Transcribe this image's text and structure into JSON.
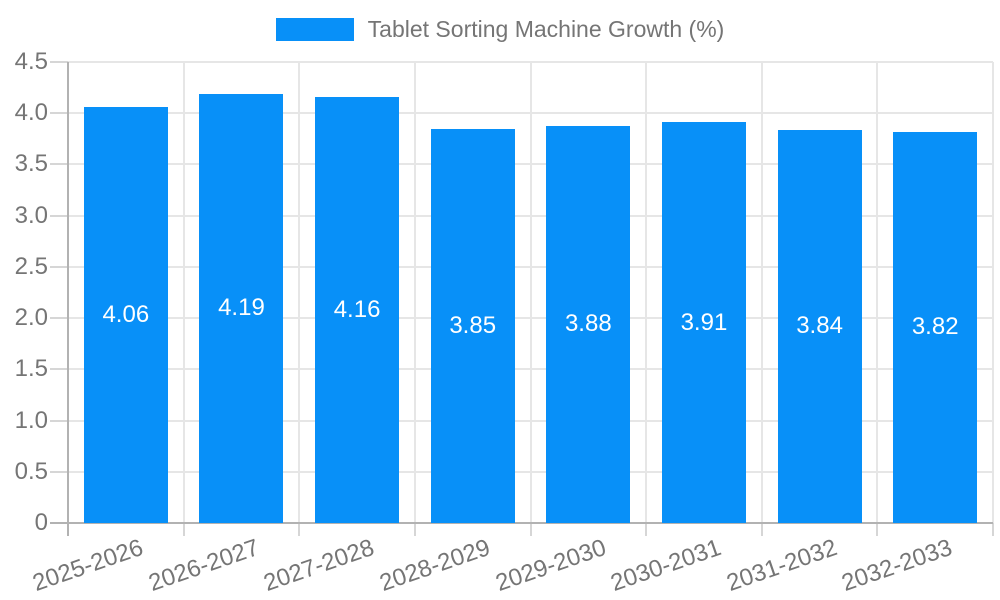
{
  "legend": {
    "label": "Tablet Sorting Machine Growth (%)"
  },
  "colors": {
    "bar": "#0890f8",
    "label_text": "#757575",
    "value_text": "#ffffff",
    "gridline": "#e6e6e6",
    "axis_line": "#b2b2b2",
    "tick_mark": "#d6d6d6"
  },
  "chart_data": {
    "type": "bar",
    "title": "Tablet Sorting Machine Growth (%)",
    "categories": [
      "2025-2026",
      "2026-2027",
      "2027-2028",
      "2028-2029",
      "2029-2030",
      "2030-2031",
      "2031-2032",
      "2032-2033"
    ],
    "values": [
      4.06,
      4.19,
      4.16,
      3.85,
      3.88,
      3.91,
      3.84,
      3.82
    ],
    "value_labels": [
      "4.06",
      "4.19",
      "4.16",
      "3.85",
      "3.88",
      "3.91",
      "3.84",
      "3.82"
    ],
    "xlabel": "",
    "ylabel": "",
    "ylim": [
      0,
      4.5
    ],
    "ytick_step": 0.5,
    "ytick_labels": [
      "0",
      "0.5",
      "1.0",
      "1.5",
      "2.0",
      "2.5",
      "3.0",
      "3.5",
      "4.0",
      "4.5"
    ],
    "grid": true,
    "legend_position": "top",
    "value_label_position": "center"
  }
}
